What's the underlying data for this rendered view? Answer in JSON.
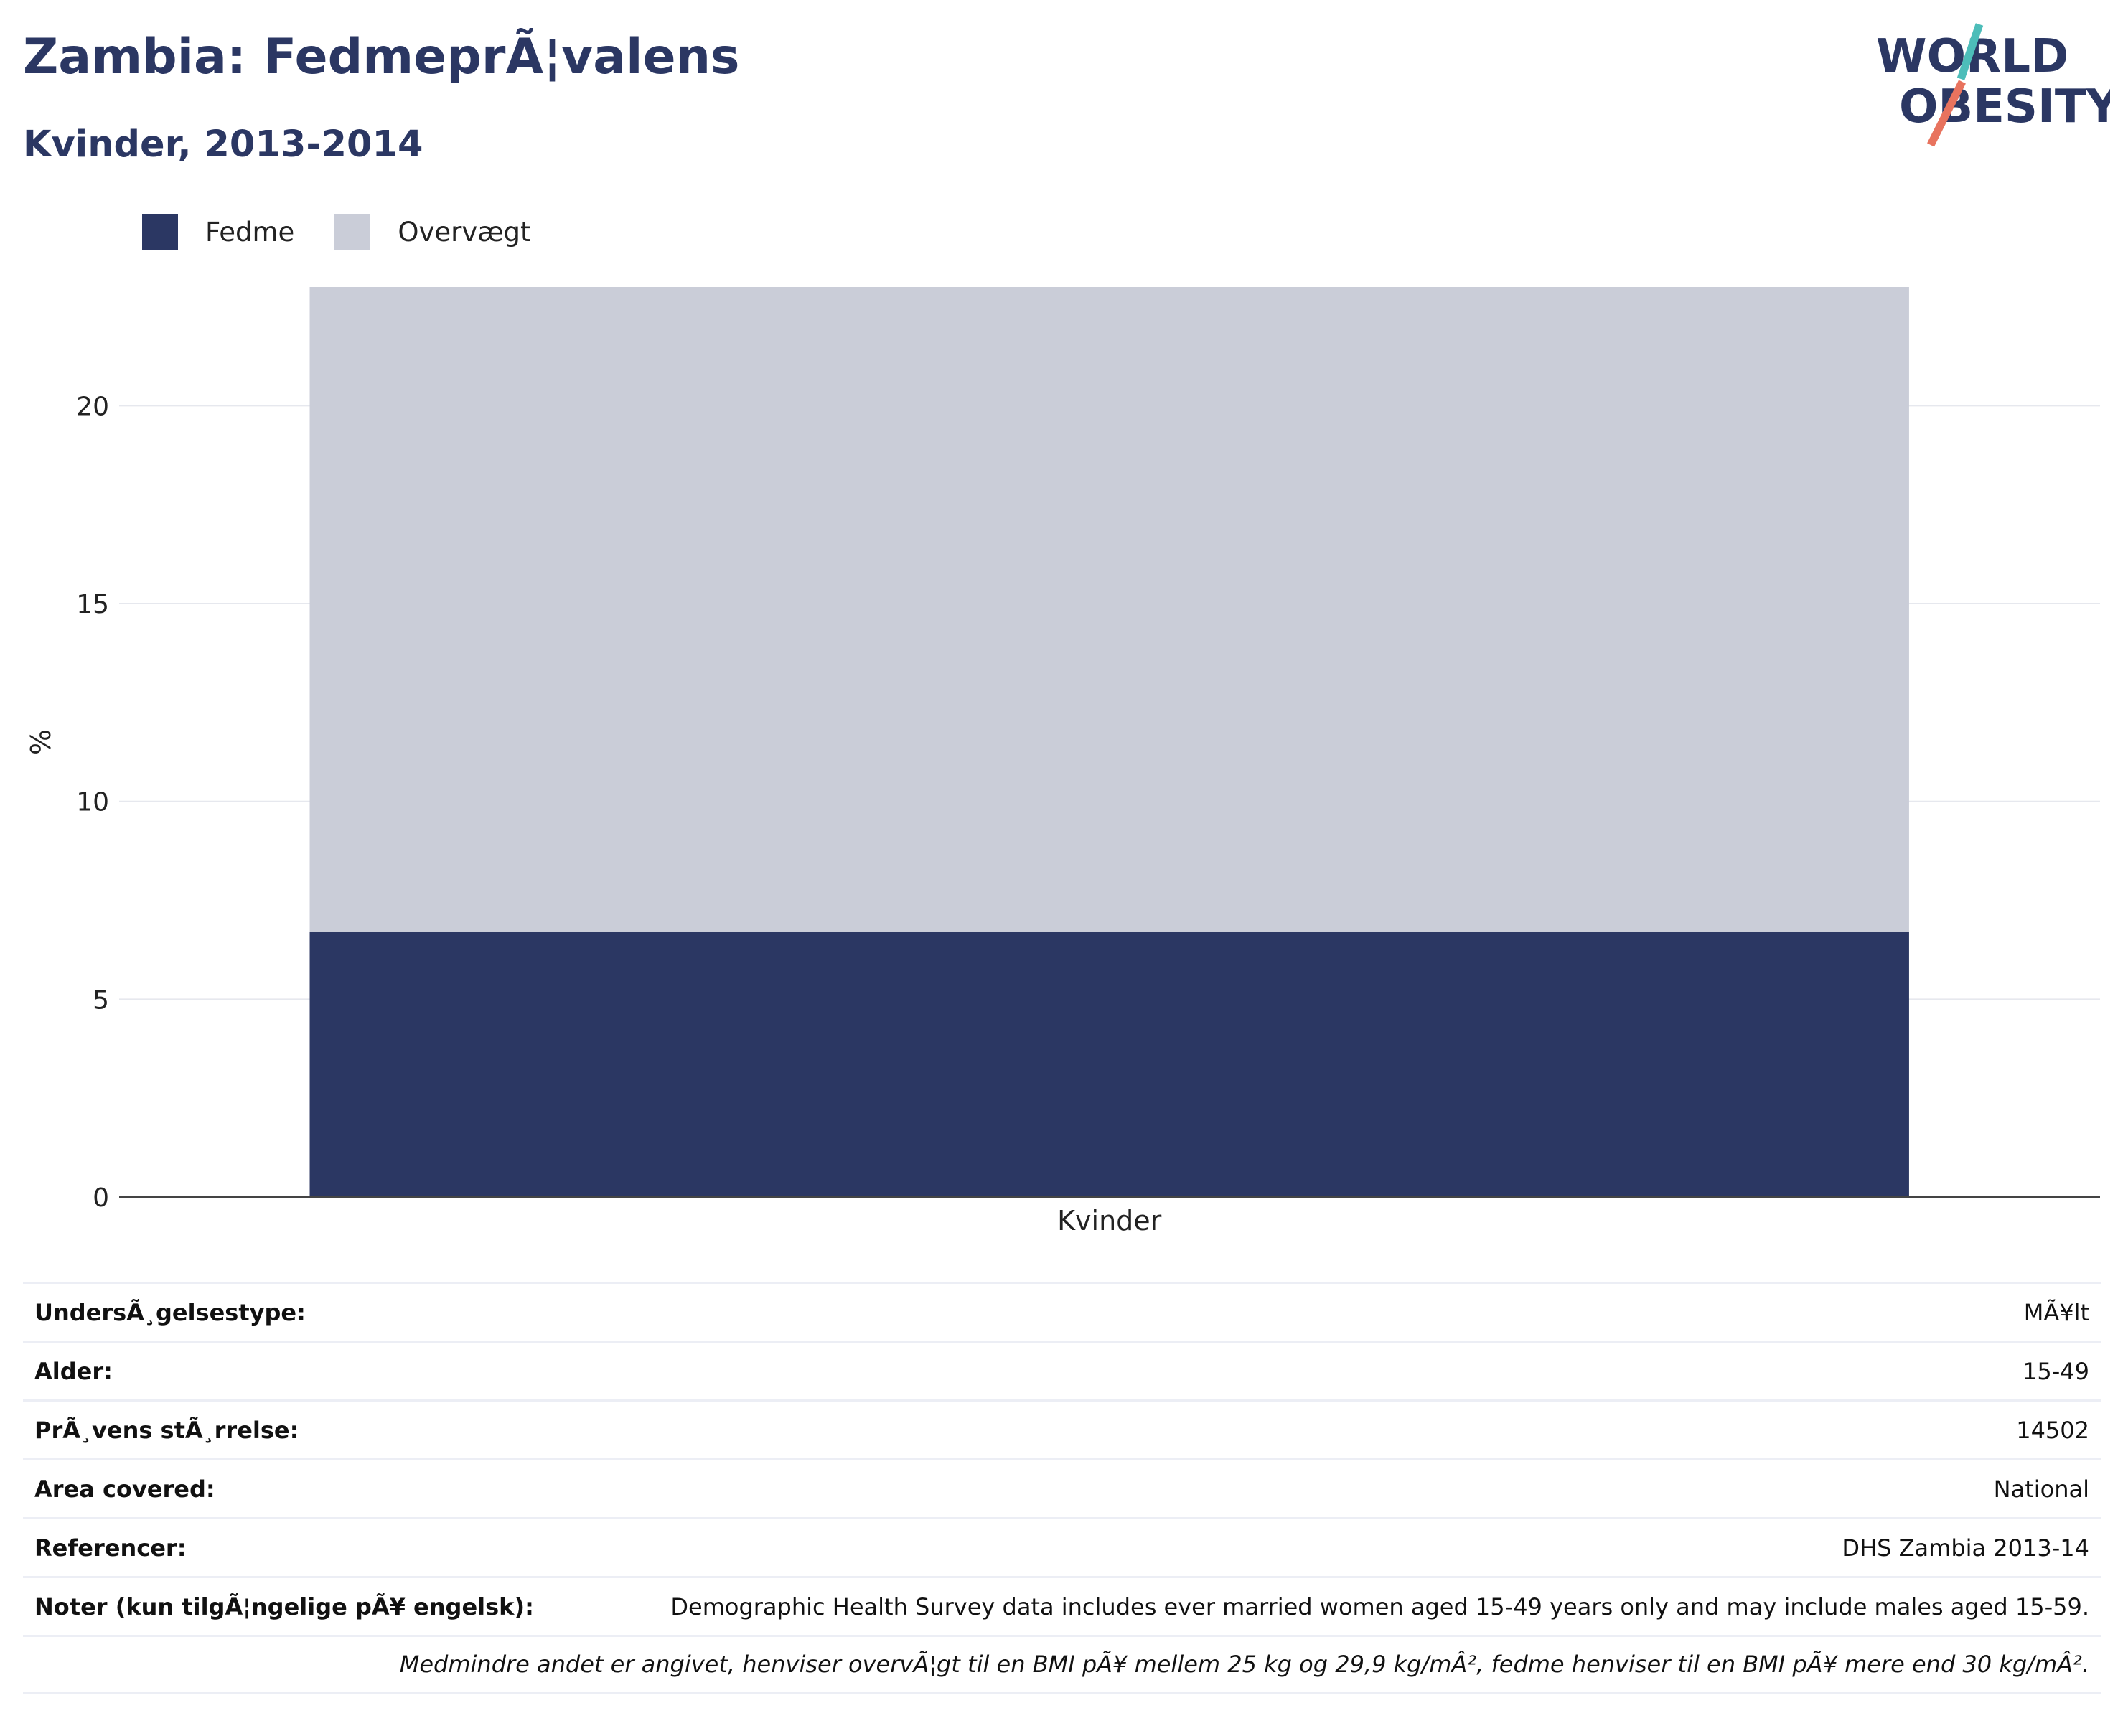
{
  "header": {
    "title": "Zambia: FedmeprÃ¦valens",
    "subtitle": "Kvinder, 2013-2014"
  },
  "logo": {
    "line1": "WORLD",
    "line2": "OBESITY",
    "accent_colors": [
      "#4dbdb9",
      "#e8735e"
    ],
    "text_color": "#2b3763"
  },
  "chart_data": {
    "type": "bar",
    "stacked": true,
    "categories": [
      "Kvinder"
    ],
    "series": [
      {
        "name": "Fedme",
        "values": [
          6.7
        ],
        "color": "#2b3763"
      },
      {
        "name": "Overvægt",
        "values": [
          16.3
        ],
        "color": "#cacdd8"
      }
    ],
    "ylabel": "%",
    "xlabel": "",
    "ylim": [
      0,
      23
    ],
    "yticks": [
      0,
      5,
      10,
      15,
      20
    ],
    "grid": true,
    "legend": "top-left"
  },
  "info": {
    "rows": [
      {
        "label": "UndersÃ¸gelsestype:",
        "value": "MÃ¥lt"
      },
      {
        "label": "Alder:",
        "value": "15-49"
      },
      {
        "label": "PrÃ¸vens stÃ¸rrelse:",
        "value": "14502"
      },
      {
        "label": "Area covered:",
        "value": "National"
      },
      {
        "label": "Referencer:",
        "value": "DHS Zambia 2013-14"
      },
      {
        "label": "Noter (kun tilgÃ¦ngelige pÃ¥ engelsk):",
        "value": "Demographic Health Survey data includes ever married women aged 15-49 years only and may include males aged 15-59."
      }
    ],
    "footnote": "Medmindre andet er angivet, henviser overvÃ¦gt til en BMI pÃ¥ mellem 25 kg og 29,9 kg/mÂ², fedme henviser til en BMI pÃ¥ mere end 30 kg/mÂ²."
  }
}
